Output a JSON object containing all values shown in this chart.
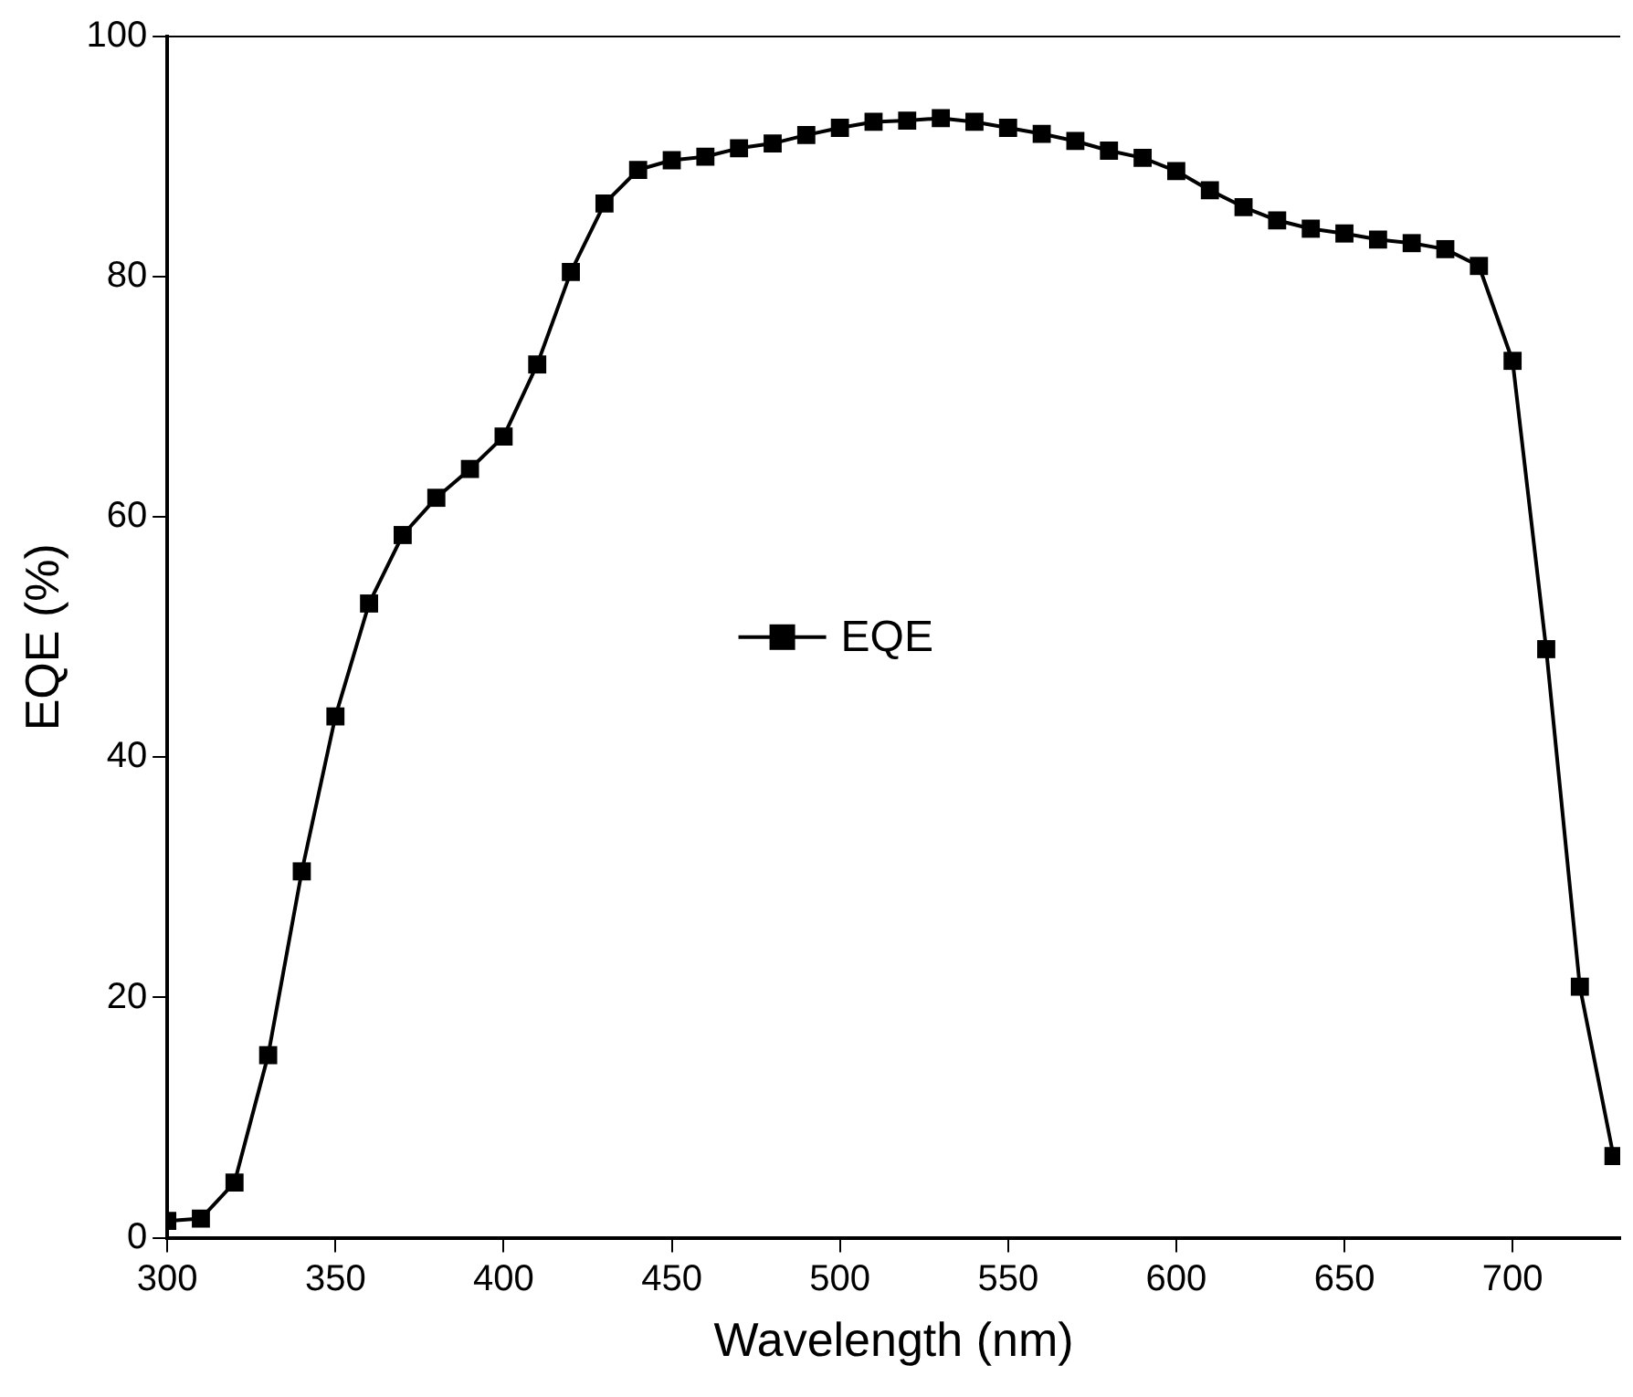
{
  "chart_data": {
    "type": "line",
    "xlabel": "Wavelength (nm)",
    "ylabel": "EQE (%)",
    "x": [
      300,
      310,
      320,
      330,
      340,
      350,
      360,
      370,
      380,
      390,
      400,
      410,
      420,
      430,
      440,
      450,
      460,
      470,
      480,
      490,
      500,
      510,
      520,
      530,
      540,
      550,
      560,
      570,
      580,
      590,
      600,
      610,
      620,
      630,
      640,
      650,
      660,
      670,
      680,
      690,
      700,
      710,
      720,
      730
    ],
    "series": [
      {
        "name": "EQE",
        "color": "#000000",
        "values": [
          1.4,
          1.6,
          4.6,
          15.2,
          30.5,
          43.4,
          52.8,
          58.5,
          61.6,
          64.0,
          66.7,
          72.7,
          80.4,
          86.1,
          88.9,
          89.7,
          90.0,
          90.7,
          91.1,
          91.8,
          92.4,
          92.9,
          93.0,
          93.2,
          92.9,
          92.4,
          91.9,
          91.3,
          90.5,
          89.9,
          88.8,
          87.2,
          85.8,
          84.7,
          84.0,
          83.6,
          83.1,
          82.8,
          82.3,
          80.9,
          73.0,
          49.0,
          20.9,
          6.8
        ]
      }
    ],
    "xlim": [
      300,
      732
    ],
    "xticks": [
      300,
      350,
      400,
      450,
      500,
      550,
      600,
      650,
      700
    ],
    "ylim": [
      0,
      100
    ],
    "yticks": [
      0,
      20,
      40,
      60,
      80,
      100
    ],
    "grid": false,
    "legend": "center",
    "marker": "square",
    "line_style": "solid"
  }
}
